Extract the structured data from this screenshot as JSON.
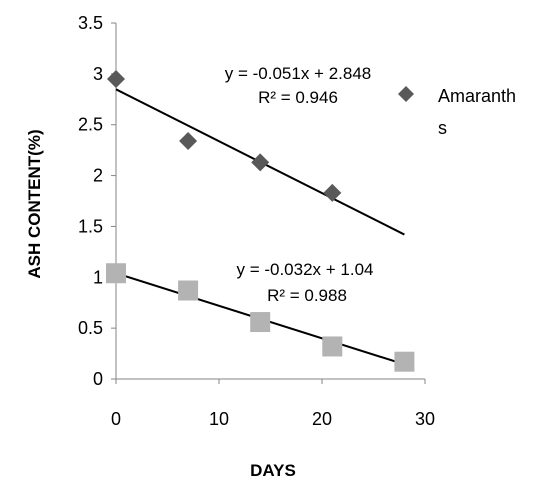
{
  "chart_data": {
    "type": "scatter",
    "xlabel": "DAYS",
    "ylabel": "ASH CONTENT(%)",
    "xlim": [
      0,
      30
    ],
    "ylim": [
      0,
      3.5
    ],
    "xticks": [
      0,
      10,
      20,
      30
    ],
    "yticks": [
      0,
      0.5,
      1,
      1.5,
      2,
      2.5,
      3,
      3.5
    ],
    "xtick_labels": [
      "0",
      "10",
      "20",
      "30"
    ],
    "ytick_labels": [
      "0",
      "0.5",
      "1",
      "1.5",
      "2",
      "2.5",
      "3",
      "3.5"
    ],
    "grid": false,
    "legend_position": "right",
    "series": [
      {
        "name": "Amaranths",
        "legend_lines": [
          "Amaranth",
          "s"
        ],
        "marker": "diamond",
        "color": "#595959",
        "x": [
          0,
          7,
          14,
          21
        ],
        "y": [
          2.95,
          2.34,
          2.13,
          1.83
        ],
        "trendline": {
          "slope": -0.051,
          "intercept": 2.848,
          "x_range": [
            0,
            28
          ],
          "equation": "y = -0.051x + 2.848",
          "r2": "R² = 0.946"
        }
      },
      {
        "marker": "square",
        "color": "#b3b3b3",
        "x": [
          0,
          7,
          14,
          21,
          28
        ],
        "y": [
          1.04,
          0.87,
          0.56,
          0.32,
          0.17
        ],
        "trendline": {
          "slope": -0.032,
          "intercept": 1.04,
          "x_range": [
            0,
            28
          ],
          "equation": "y = -0.032x + 1.04",
          "r2": "R² = 0.988"
        }
      }
    ]
  }
}
